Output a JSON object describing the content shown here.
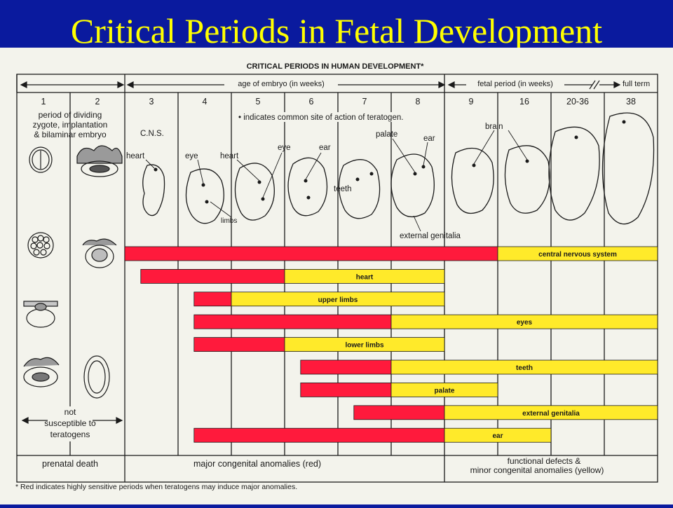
{
  "slide_title": "Critical Periods in Fetal Development",
  "chart_heading": "CRITICAL PERIODS IN HUMAN DEVELOPMENT*",
  "timeline": {
    "embryo_label": "age of embryo (in weeks)",
    "fetal_label": "fetal period (in weeks)",
    "full_term_label": "full term",
    "columns": [
      "1",
      "2",
      "3",
      "4",
      "5",
      "6",
      "7",
      "8",
      "9",
      "16",
      "20-36",
      "38"
    ]
  },
  "notes": {
    "early_period_lines": [
      "period of dividing",
      "zygote, implantation",
      "& bilaminar embryo"
    ],
    "teratogen_note": "• indicates common site of action of teratogen.",
    "not_susceptible_lines": [
      "not",
      "susceptible to",
      "teratogens"
    ]
  },
  "organ_labels": {
    "cns": "C.N.S.",
    "heart_wk3": "heart",
    "eye_wk4": "eye",
    "heart_wk5": "heart",
    "eye_wk5": "eye",
    "ear_wk6": "ear",
    "limbs": "limbs",
    "teeth": "teeth",
    "palate": "palate",
    "ear_wk8": "ear",
    "brain": "brain",
    "external_genitalia": "external genitalia"
  },
  "bottom_labels": {
    "prenatal_death": "prenatal death",
    "major_anomalies": "major congenital anomalies (red)",
    "functional_defects_line1": "functional defects &",
    "functional_defects_line2": "minor congenital anomalies (yellow)"
  },
  "footnote": "* Red indicates highly sensitive periods when teratogens may induce major anomalies.",
  "colors": {
    "slide_background": "#0a1a9e",
    "title_text": "#ffff00",
    "paper": "#f3f3ec",
    "major_sensitivity": "#ff1a3c",
    "minor_sensitivity": "#ffea2a",
    "ink": "#1a1a1a"
  },
  "chart_data": {
    "type": "gantt",
    "x_unit": "week column",
    "sensitive_periods": [
      {
        "organ": "central nervous system",
        "major_start": "3",
        "major_end": "16",
        "minor_end": "38"
      },
      {
        "organ": "heart",
        "major_start": "3",
        "major_end": "6",
        "minor_end": "8"
      },
      {
        "organ": "upper limbs",
        "major_start": "4",
        "major_end": "5",
        "minor_end": "8"
      },
      {
        "organ": "eyes",
        "major_start": "4",
        "major_end": "8",
        "minor_end": "38"
      },
      {
        "organ": "lower limbs",
        "major_start": "4",
        "major_end": "6",
        "minor_end": "8"
      },
      {
        "organ": "teeth",
        "major_start": "6",
        "major_end": "8",
        "minor_end": "38"
      },
      {
        "organ": "palate",
        "major_start": "6",
        "major_end": "8",
        "minor_end": "9"
      },
      {
        "organ": "external genitalia",
        "major_start": "7",
        "major_end": "9",
        "minor_end": "38"
      },
      {
        "organ": "ear",
        "major_start": "4",
        "major_end": "9",
        "minor_end": "16"
      }
    ]
  }
}
